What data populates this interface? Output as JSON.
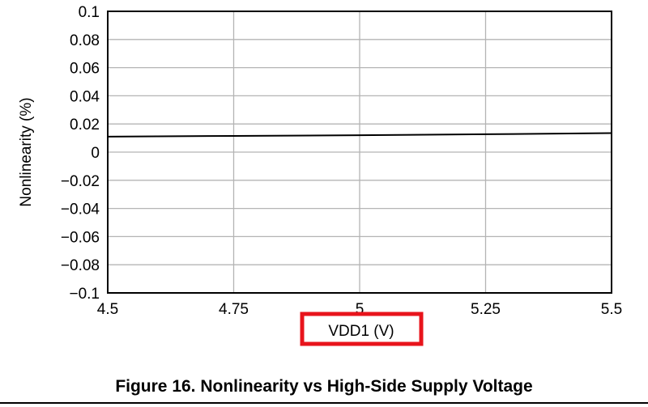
{
  "chart_data": {
    "type": "line",
    "title": "",
    "xlabel": "VDD1 (V)",
    "ylabel": "Nonlinearity (%)",
    "xlim": [
      4.5,
      5.5
    ],
    "ylim": [
      -0.1,
      0.1
    ],
    "x_ticks": [
      "4.5",
      "4.75",
      "5",
      "5.25",
      "5.5"
    ],
    "y_ticks": [
      "0.1",
      "0.08",
      "0.06",
      "0.04",
      "0.02",
      "0",
      "−0.02",
      "−0.04",
      "−0.06",
      "−0.08",
      "−0.1"
    ],
    "grid": true,
    "series": [
      {
        "x": [
          4.5,
          4.75,
          5.0,
          5.25,
          5.5
        ],
        "y": [
          0.011,
          0.0115,
          0.012,
          0.0127,
          0.0135
        ]
      }
    ],
    "highlight": "xlabel",
    "colors": {
      "line": "#000000",
      "grid": "#b4b4b4",
      "frame": "#000000",
      "highlight": "#e8141c"
    }
  },
  "caption": "Figure 16. Nonlinearity vs High-Side Supply Voltage"
}
